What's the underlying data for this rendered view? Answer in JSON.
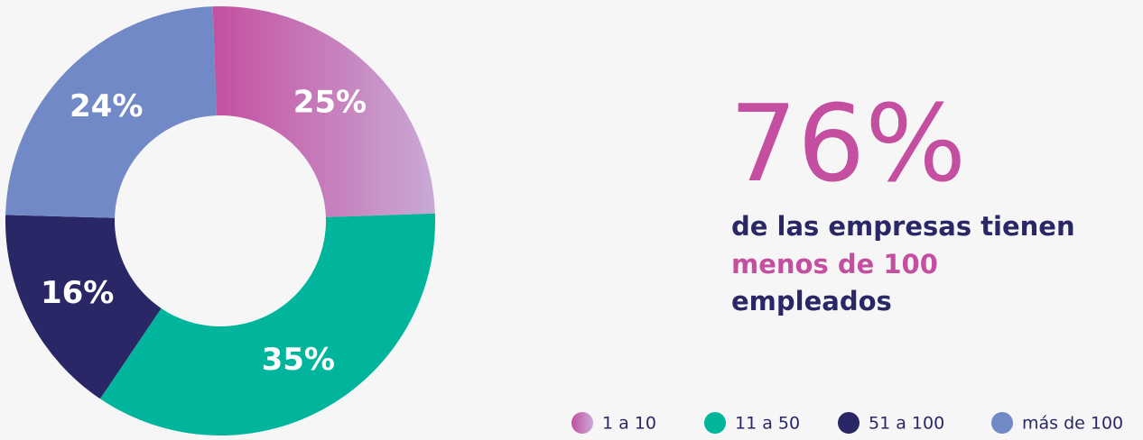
{
  "chart_data": {
    "type": "pie",
    "donut": true,
    "categories": [
      "1 a 10",
      "11 a 50",
      "51 a 100",
      "más de 100"
    ],
    "values": [
      25,
      35,
      16,
      24
    ],
    "value_labels": [
      "25%",
      "35%",
      "16%",
      "24%"
    ],
    "colors": [
      "#c44fa0",
      "#00b59c",
      "#2a2766",
      "#7189c6"
    ],
    "legend": "bottom-right",
    "callout": {
      "headline": "76%",
      "lines": [
        "de las empresas tienen",
        "menos de 100",
        "empleados"
      ]
    }
  }
}
